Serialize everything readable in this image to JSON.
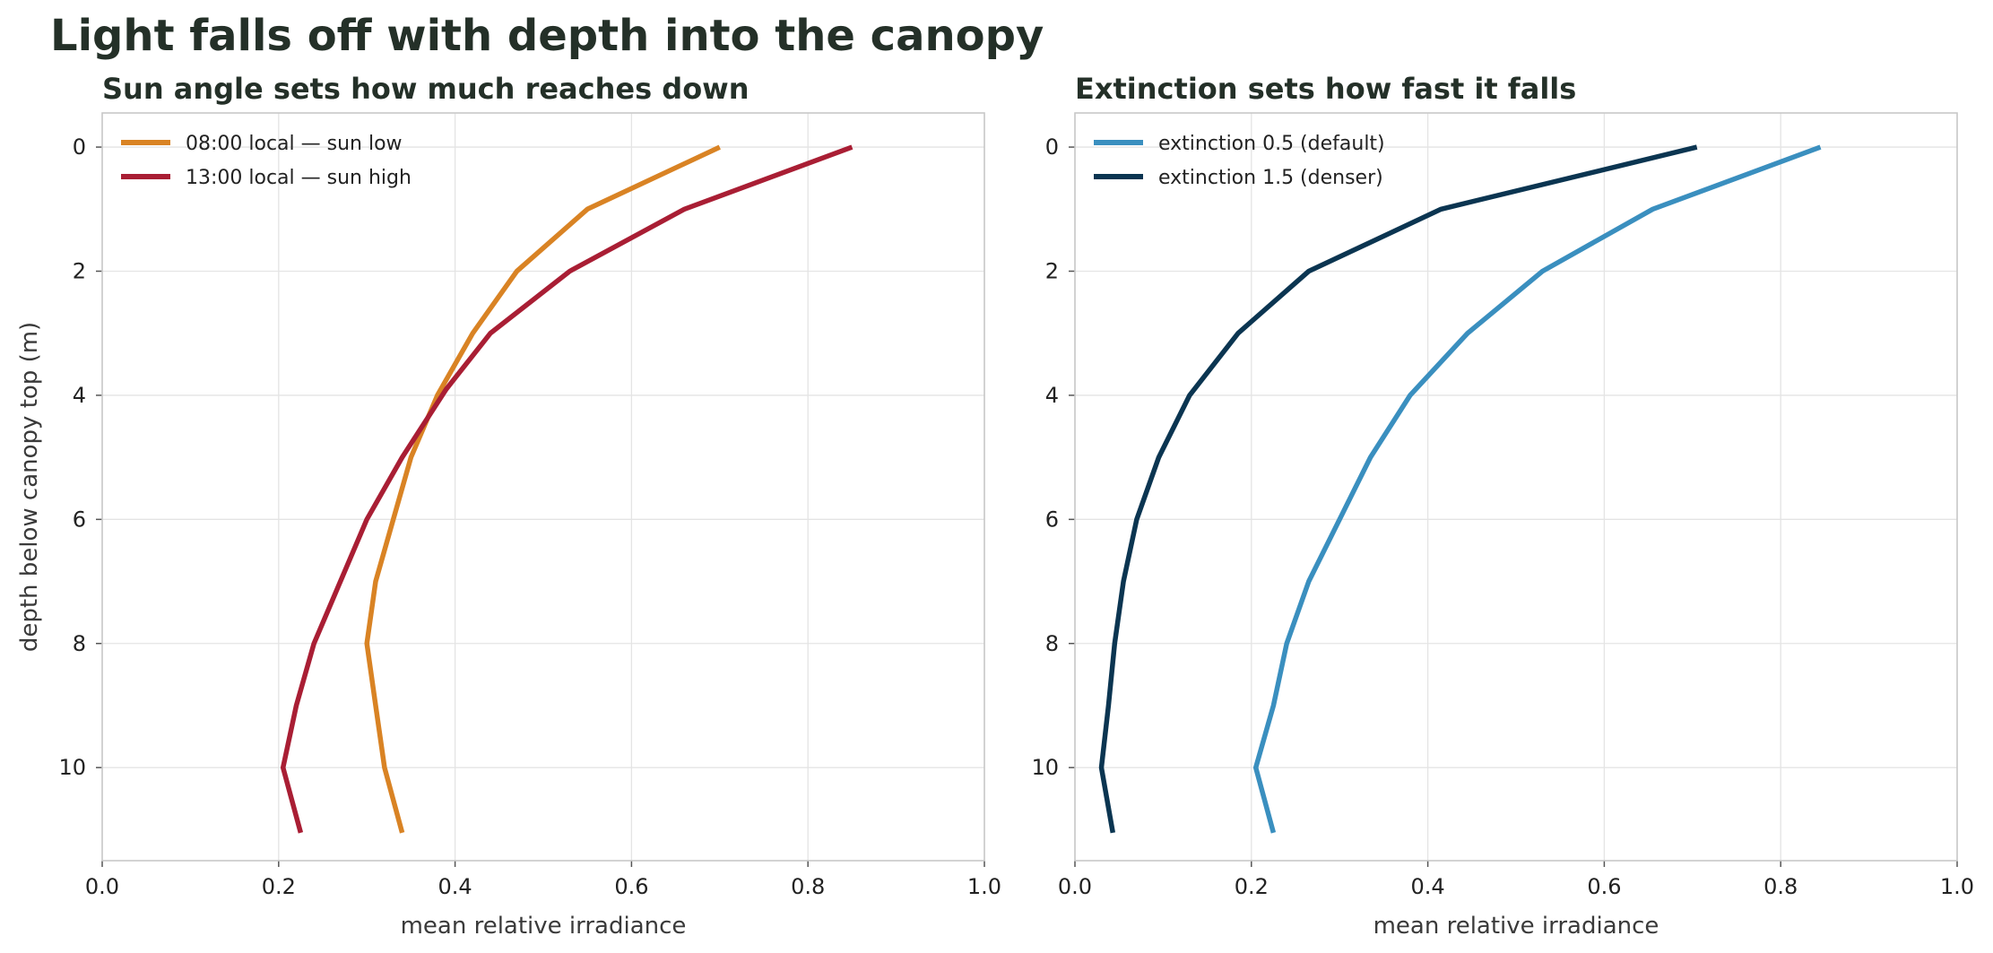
{
  "title": "Light falls off with depth into the canopy",
  "chart_data": [
    {
      "type": "line",
      "title": "Sun angle sets how much reaches down",
      "xlabel": "mean relative irradiance",
      "ylabel": "depth below canopy top (m)",
      "xlim": [
        0,
        1
      ],
      "ylim": [
        11.5,
        -0.55
      ],
      "y_inverted": true,
      "xticks": [
        "0.0",
        "0.2",
        "0.4",
        "0.6",
        "0.8",
        "1.0"
      ],
      "yticks": [
        "0",
        "2",
        "4",
        "6",
        "8",
        "10"
      ],
      "grid": true,
      "legend_position": "top-left",
      "series": [
        {
          "name": "08:00 local — sun low",
          "color": "#d98324",
          "points": [
            [
              0.7,
              0
            ],
            [
              0.55,
              1
            ],
            [
              0.47,
              2
            ],
            [
              0.42,
              3
            ],
            [
              0.38,
              4
            ],
            [
              0.35,
              5
            ],
            [
              0.33,
              6
            ],
            [
              0.31,
              7
            ],
            [
              0.3,
              8
            ],
            [
              0.31,
              9
            ],
            [
              0.32,
              10
            ],
            [
              0.34,
              11.05
            ]
          ]
        },
        {
          "name": "13:00 local — sun high",
          "color": "#a91e34",
          "points": [
            [
              0.85,
              0
            ],
            [
              0.66,
              1
            ],
            [
              0.53,
              2
            ],
            [
              0.44,
              3
            ],
            [
              0.39,
              3.9
            ],
            [
              0.34,
              5
            ],
            [
              0.3,
              6
            ],
            [
              0.27,
              7
            ],
            [
              0.24,
              8
            ],
            [
              0.22,
              9
            ],
            [
              0.205,
              10
            ],
            [
              0.225,
              11.05
            ]
          ]
        }
      ]
    },
    {
      "type": "line",
      "title": "Extinction sets how fast it falls",
      "xlabel": "mean relative irradiance",
      "ylabel": "",
      "xlim": [
        0,
        1
      ],
      "ylim": [
        11.5,
        -0.55
      ],
      "y_inverted": true,
      "xticks": [
        "0.0",
        "0.2",
        "0.4",
        "0.6",
        "0.8",
        "1.0"
      ],
      "yticks": [
        "0",
        "2",
        "4",
        "6",
        "8",
        "10"
      ],
      "grid": true,
      "legend_position": "top-left",
      "series": [
        {
          "name": "extinction 0.5 (default)",
          "color": "#3a8fbf",
          "points": [
            [
              0.845,
              0
            ],
            [
              0.655,
              1
            ],
            [
              0.53,
              2
            ],
            [
              0.445,
              3
            ],
            [
              0.38,
              4
            ],
            [
              0.335,
              5
            ],
            [
              0.3,
              6
            ],
            [
              0.265,
              7
            ],
            [
              0.24,
              8
            ],
            [
              0.225,
              9
            ],
            [
              0.205,
              10
            ],
            [
              0.225,
              11.05
            ]
          ]
        },
        {
          "name": "extinction 1.5 (denser)",
          "color": "#0b3551",
          "points": [
            [
              0.705,
              0
            ],
            [
              0.415,
              1
            ],
            [
              0.265,
              2
            ],
            [
              0.185,
              3
            ],
            [
              0.13,
              4
            ],
            [
              0.095,
              5
            ],
            [
              0.07,
              6
            ],
            [
              0.055,
              7
            ],
            [
              0.045,
              8
            ],
            [
              0.038,
              9
            ],
            [
              0.03,
              10
            ],
            [
              0.043,
              11.05
            ]
          ]
        }
      ]
    }
  ]
}
